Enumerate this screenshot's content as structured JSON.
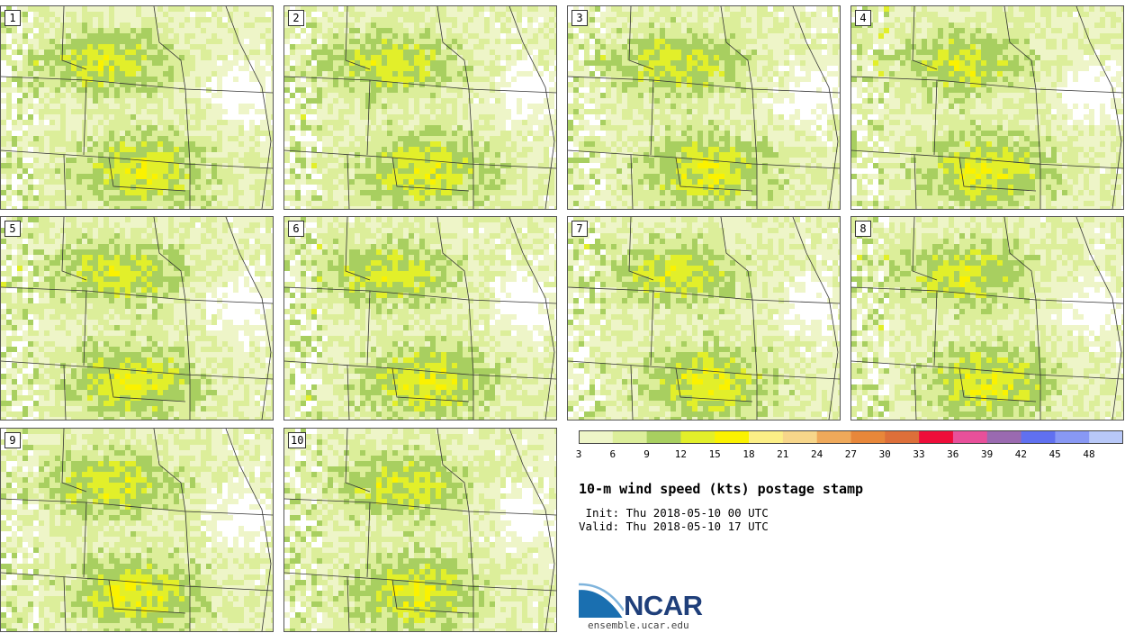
{
  "panels": [
    {
      "label": "1"
    },
    {
      "label": "2"
    },
    {
      "label": "3"
    },
    {
      "label": "4"
    },
    {
      "label": "5"
    },
    {
      "label": "6"
    },
    {
      "label": "7"
    },
    {
      "label": "8"
    },
    {
      "label": "9"
    },
    {
      "label": "10"
    }
  ],
  "legend": {
    "ticks": [
      "3",
      "6",
      "9",
      "12",
      "15",
      "18",
      "21",
      "24",
      "27",
      "30",
      "33",
      "36",
      "39",
      "42",
      "45",
      "48"
    ],
    "colors": [
      "#eef5c8",
      "#dcee9a",
      "#a8cf60",
      "#e2ef2a",
      "#fbf200",
      "#fcef86",
      "#f7d68a",
      "#efa95a",
      "#e8873a",
      "#dd6f3a",
      "#ee0e3a",
      "#e8509a",
      "#9a6ab0",
      "#6070f0",
      "#8898f4",
      "#b8c8f8"
    ]
  },
  "title": "10-m wind speed (kts) postage stamp",
  "init": " Init: Thu 2018-05-10 00 UTC",
  "valid": "Valid: Thu 2018-05-10 17 UTC",
  "logo": {
    "text": "NCAR",
    "url": "ensemble.ucar.edu"
  }
}
